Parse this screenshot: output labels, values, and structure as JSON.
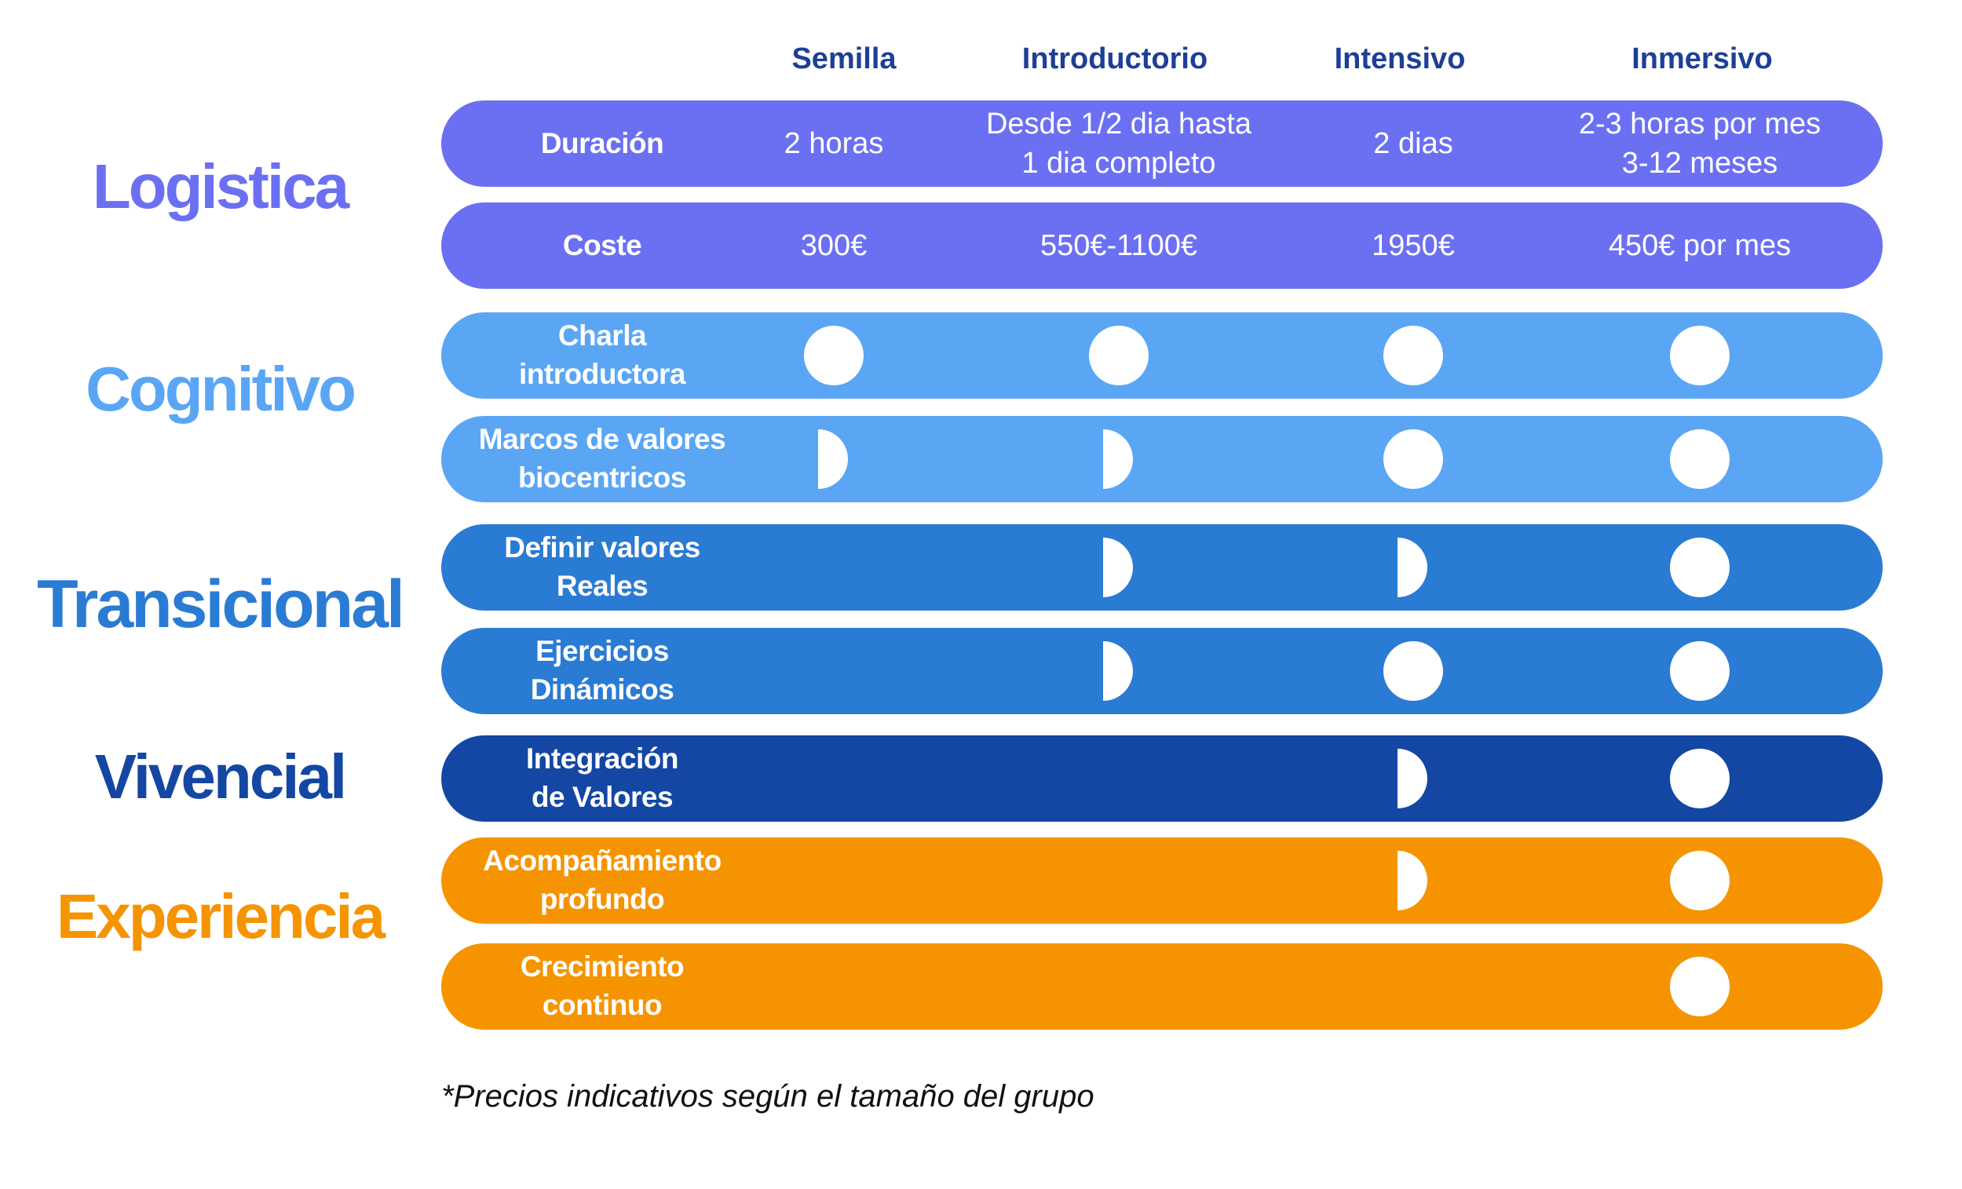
{
  "columns": [
    "Semilla",
    "Introductorio",
    "Intensivo",
    "Inmersivo"
  ],
  "colors": {
    "logistica": "#6b70f2",
    "cognitivo": "#5aa6f5",
    "transicional": "#2a7bd3",
    "vivencial": "#1447a3",
    "experiencia": "#f59400",
    "header_text": "#1e3f96"
  },
  "sections": [
    {
      "title": "Logistica",
      "color": "#6b70f2"
    },
    {
      "title": "Cognitivo",
      "color": "#5aa6f5"
    },
    {
      "title": "Transicional",
      "color": "#2a7bd3"
    },
    {
      "title": "Vivencial",
      "color": "#1447a3"
    },
    {
      "title": "Experiencia",
      "color": "#f59400"
    }
  ],
  "rows": [
    {
      "label": "Duración",
      "color": "#6b70f2",
      "cells": [
        "2 horas",
        "Desde 1/2 dia hasta\n1 dia completo",
        "2 dias",
        "2-3 horas por mes\n3-12 meses"
      ]
    },
    {
      "label": "Coste",
      "color": "#6b70f2",
      "cells": [
        "300€",
        "550€-1100€",
        "1950€",
        "450€ por mes"
      ]
    },
    {
      "label": "Charla\nintroductora",
      "color": "#5aa6f5",
      "levels": [
        "full",
        "full",
        "full",
        "full"
      ]
    },
    {
      "label": "Marcos de valores\nbiocentricos",
      "color": "#5aa6f5",
      "levels": [
        "half",
        "half",
        "full",
        "full"
      ]
    },
    {
      "label": "Definir valores\nReales",
      "color": "#2a7bd3",
      "levels": [
        "none",
        "half",
        "half",
        "full"
      ]
    },
    {
      "label": "Ejercicios\nDinámicos",
      "color": "#2a7bd3",
      "levels": [
        "none",
        "half",
        "full",
        "full"
      ]
    },
    {
      "label": "Integración\nde Valores",
      "color": "#1447a3",
      "levels": [
        "none",
        "none",
        "half",
        "full"
      ]
    },
    {
      "label": "Acompañamiento\nprofundo",
      "color": "#f59400",
      "levels": [
        "none",
        "none",
        "half",
        "full"
      ]
    },
    {
      "label": "Crecimiento\ncontinuo",
      "color": "#f59400",
      "levels": [
        "none",
        "none",
        "none",
        "full"
      ]
    }
  ],
  "footnote": "*Precios indicativos según el tamaño del grupo"
}
